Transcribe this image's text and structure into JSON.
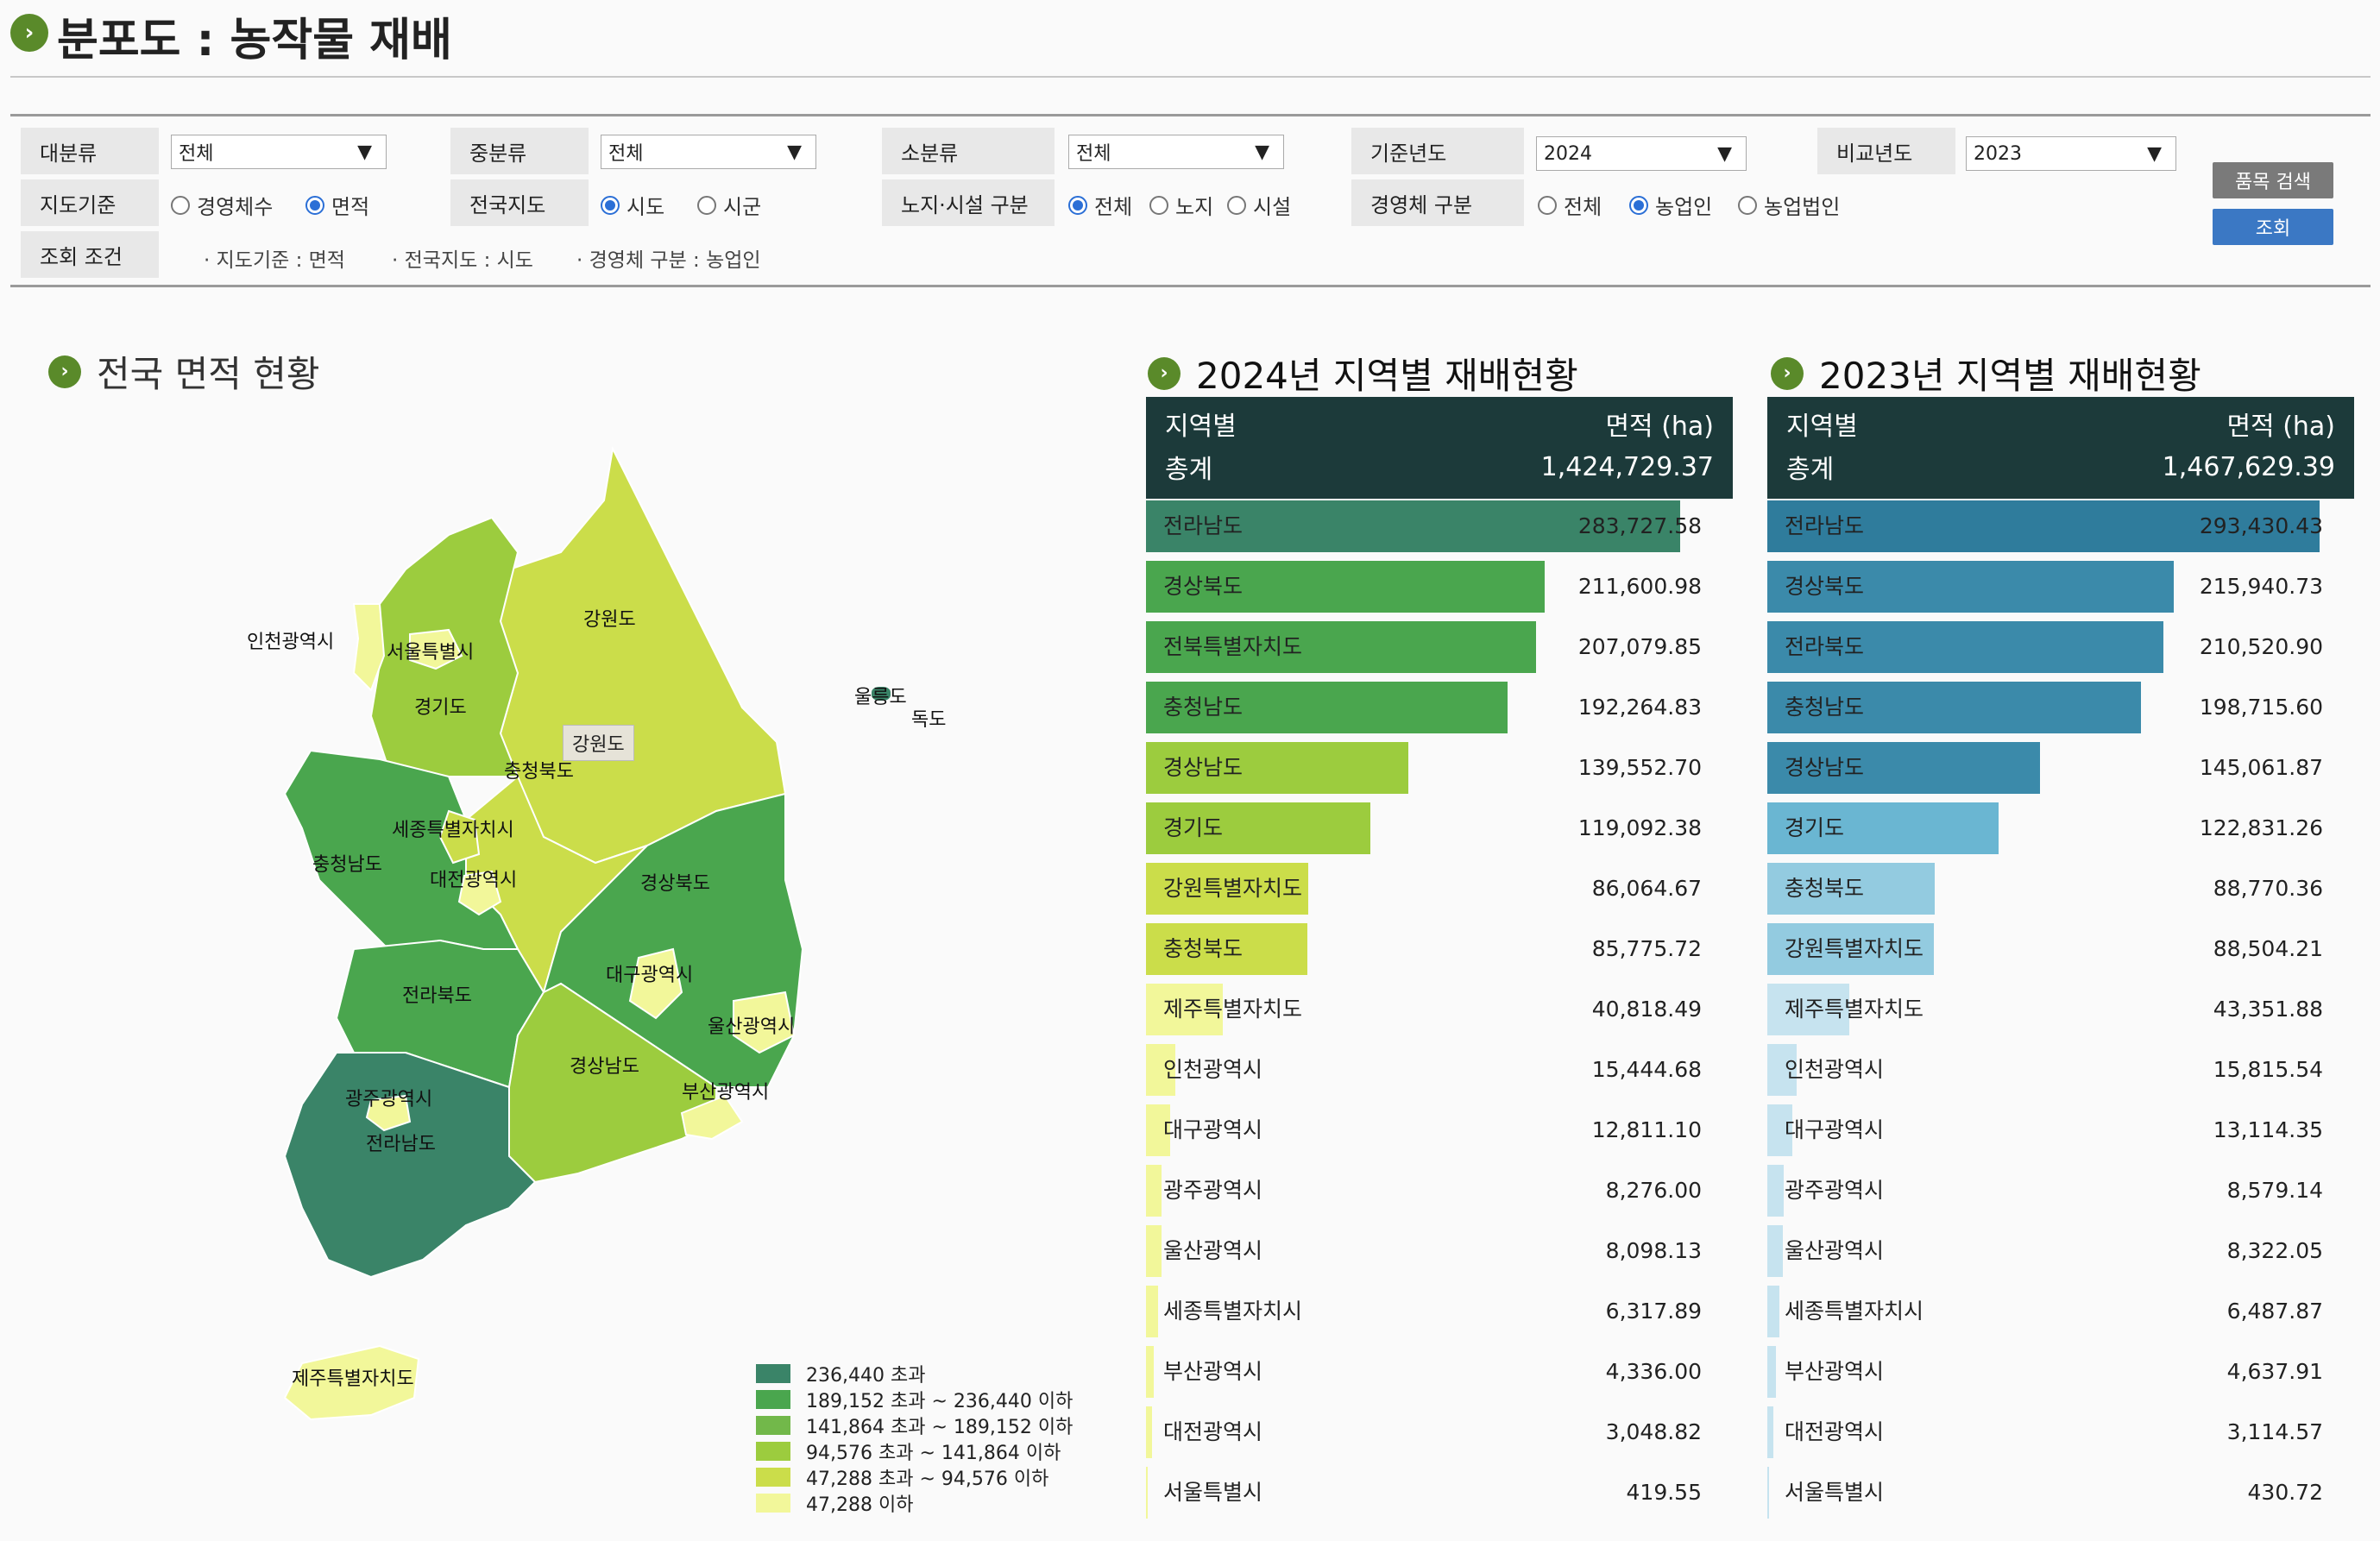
{
  "page": {
    "title": "분포도 : 농작물 재배"
  },
  "filters": {
    "category_main": {
      "label": "대분류",
      "value": "전체"
    },
    "category_mid": {
      "label": "중분류",
      "value": "전체"
    },
    "category_sub": {
      "label": "소분류",
      "value": "전체"
    },
    "base_year": {
      "label": "기준년도",
      "value": "2024"
    },
    "compare_year": {
      "label": "비교년도",
      "value": "2023"
    },
    "map_basis": {
      "label": "지도기준",
      "options": [
        "경영체수",
        "면적"
      ],
      "selected": 1
    },
    "national_map": {
      "label": "전국지도",
      "options": [
        "시도",
        "시군"
      ],
      "selected": 0
    },
    "open_facility": {
      "label": "노지·시설 구분",
      "options": [
        "전체",
        "노지",
        "시설"
      ],
      "selected": 0
    },
    "entity_type": {
      "label": "경영체 구분",
      "options": [
        "전체",
        "농업인",
        "농업법인"
      ],
      "selected": 1
    },
    "query_conditions": {
      "label": "조회 조건",
      "items": [
        "· 지도기준 : 면적",
        "· 전국지도 : 시도",
        "· 경영체 구분 : 농업인"
      ]
    }
  },
  "buttons": {
    "item_search": "품목 검색",
    "query": "조회"
  },
  "colors": {
    "accent": "#5a8a2a",
    "header_dark": "#1c3a3a",
    "green_scale": [
      "#3a8468",
      "#4aa64e",
      "#72b84a",
      "#9ccc3e",
      "#cbdd4a",
      "#f2f79a"
    ],
    "blue_scale": [
      "#2f7c9c",
      "#3b8aaa",
      "#6ab6d2",
      "#93cbe0",
      "#c6e3ef"
    ]
  },
  "map_section": {
    "title": "전국 면적 현황",
    "hover_label": "강원도",
    "region_labels": [
      "인천광역시",
      "서울특별시",
      "경기도",
      "강원도",
      "울릉도",
      "독도",
      "충청북도",
      "세종특별자치시",
      "충청남도",
      "대전광역시",
      "경상북도",
      "대구광역시",
      "전라북도",
      "울산광역시",
      "경상남도",
      "부산광역시",
      "광주광역시",
      "전라남도",
      "제주특별자치도"
    ],
    "legend": [
      {
        "label": "236,440 초과",
        "color": "#3a8468"
      },
      {
        "label": "189,152 초과 ~ 236,440 이하",
        "color": "#4aa64e"
      },
      {
        "label": "141,864 초과 ~ 189,152 이하",
        "color": "#72b84a"
      },
      {
        "label": "94,576 초과 ~ 141,864 이하",
        "color": "#9ccc3e"
      },
      {
        "label": "47,288 초과 ~ 94,576 이하",
        "color": "#cbdd4a"
      },
      {
        "label": "47,288 이하",
        "color": "#f2f79a"
      }
    ]
  },
  "chart_data": [
    {
      "type": "bar",
      "title": "2024년 지역별 재배현황",
      "col_region": "지역별",
      "col_area": "면적 (ha)",
      "total_label": "총계",
      "total_value": "1,424,729.37",
      "categories": [
        "전라남도",
        "경상북도",
        "전북특별자치도",
        "충청남도",
        "경상남도",
        "경기도",
        "강원특별자치도",
        "충청북도",
        "제주특별자치도",
        "인천광역시",
        "대구광역시",
        "광주광역시",
        "울산광역시",
        "세종특별자치시",
        "부산광역시",
        "대전광역시",
        "서울특별시"
      ],
      "values": [
        283727.58,
        211600.98,
        207079.85,
        192264.83,
        139552.7,
        119092.38,
        86064.67,
        85775.72,
        40818.49,
        15444.68,
        12811.1,
        8276.0,
        8098.13,
        6317.89,
        4336.0,
        3048.82,
        419.55
      ],
      "value_labels": [
        "283,727.58",
        "211,600.98",
        "207,079.85",
        "192,264.83",
        "139,552.70",
        "119,092.38",
        "86,064.67",
        "85,775.72",
        "40,818.49",
        "15,444.68",
        "12,811.10",
        "8,276.00",
        "8,098.13",
        "6,317.89",
        "4,336.00",
        "3,048.82",
        "419.55"
      ]
    },
    {
      "type": "bar",
      "title": "2023년 지역별 재배현황",
      "col_region": "지역별",
      "col_area": "면적 (ha)",
      "total_label": "총계",
      "total_value": "1,467,629.39",
      "categories": [
        "전라남도",
        "경상북도",
        "전라북도",
        "충청남도",
        "경상남도",
        "경기도",
        "충청북도",
        "강원특별자치도",
        "제주특별자치도",
        "인천광역시",
        "대구광역시",
        "광주광역시",
        "울산광역시",
        "세종특별자치시",
        "부산광역시",
        "대전광역시",
        "서울특별시"
      ],
      "values": [
        293430.43,
        215940.73,
        210520.9,
        198715.6,
        145061.87,
        122831.26,
        88770.36,
        88504.21,
        43351.88,
        15815.54,
        13114.35,
        8579.14,
        8322.05,
        6487.87,
        4637.91,
        3114.57,
        430.72
      ],
      "value_labels": [
        "293,430.43",
        "215,940.73",
        "210,520.90",
        "198,715.60",
        "145,061.87",
        "122,831.26",
        "88,770.36",
        "88,504.21",
        "43,351.88",
        "15,815.54",
        "13,114.35",
        "8,579.14",
        "8,322.05",
        "6,487.87",
        "4,637.91",
        "3,114.57",
        "430.72"
      ]
    }
  ]
}
